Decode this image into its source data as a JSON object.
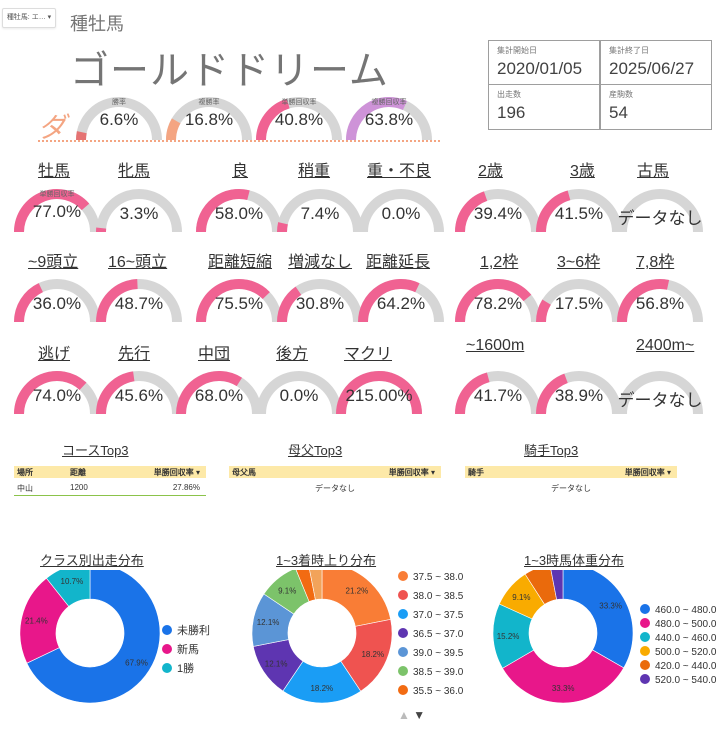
{
  "control": {
    "label": "種牡馬: エ… ▾"
  },
  "header": {
    "tag": "種牡馬",
    "horse_name": "ゴールドドリーム"
  },
  "info": [
    {
      "label": "集計開始日",
      "value": "2020/01/05"
    },
    {
      "label": "集計終了日",
      "value": "2025/06/27"
    },
    {
      "label": "出走数",
      "value": "196"
    },
    {
      "label": "産駒数",
      "value": "54"
    }
  ],
  "top_mark": "ダ",
  "top_gauges": [
    {
      "label": "勝率",
      "value": "6.6%",
      "ratio": 0.066,
      "color": "#e57373"
    },
    {
      "label": "複勝率",
      "value": "16.8%",
      "ratio": 0.168,
      "color": "#f4a582"
    },
    {
      "label": "単勝回収率",
      "value": "40.8%",
      "ratio": 0.408,
      "color": "#f06292"
    },
    {
      "label": "複勝回収率",
      "value": "63.8%",
      "ratio": 0.638,
      "color": "#ce93d8"
    }
  ],
  "gauge_sublabel": "単勝回収率",
  "sections": {
    "sex": [
      {
        "label": "牡馬",
        "value": "77.0%",
        "ratio": 0.77
      },
      {
        "label": "牝馬",
        "value": "3.3%",
        "ratio": 0.033
      }
    ],
    "going": [
      {
        "label": "良",
        "value": "58.0%",
        "ratio": 0.58
      },
      {
        "label": "稍重",
        "value": "7.4%",
        "ratio": 0.074
      },
      {
        "label": "重・不良",
        "value": "0.0%",
        "ratio": 0
      }
    ],
    "age": [
      {
        "label": "2歳",
        "value": "39.4%",
        "ratio": 0.394
      },
      {
        "label": "3歳",
        "value": "41.5%",
        "ratio": 0.415
      },
      {
        "label": "古馬",
        "value": "データなし",
        "ratio": 0
      }
    ],
    "field": [
      {
        "label": "~9頭立",
        "value": "36.0%",
        "ratio": 0.36
      },
      {
        "label": "16~頭立",
        "value": "48.7%",
        "ratio": 0.487
      }
    ],
    "dist_change": [
      {
        "label": "距離短縮",
        "value": "75.5%",
        "ratio": 0.755
      },
      {
        "label": "増減なし",
        "value": "30.8%",
        "ratio": 0.308
      },
      {
        "label": "距離延長",
        "value": "64.2%",
        "ratio": 0.642
      }
    ],
    "gate": [
      {
        "label": "1,2枠",
        "value": "78.2%",
        "ratio": 0.782
      },
      {
        "label": "3~6枠",
        "value": "17.5%",
        "ratio": 0.175
      },
      {
        "label": "7,8枠",
        "value": "56.8%",
        "ratio": 0.568
      }
    ],
    "style": [
      {
        "label": "逃げ",
        "value": "74.0%",
        "ratio": 0.74
      },
      {
        "label": "先行",
        "value": "45.6%",
        "ratio": 0.456
      },
      {
        "label": "中団",
        "value": "68.0%",
        "ratio": 0.68
      },
      {
        "label": "後方",
        "value": "0.0%",
        "ratio": 0
      },
      {
        "label": "マクリ",
        "value": "215.00%",
        "ratio": 1.0
      }
    ],
    "distance": [
      {
        "label": "~1600m",
        "value": "41.7%",
        "ratio": 0.417
      },
      {
        "label": "",
        "value": "38.9%",
        "ratio": 0.389
      },
      {
        "label": "2400m~",
        "value": "データなし",
        "ratio": 0
      }
    ]
  },
  "tables": {
    "course": {
      "title": "コースTop3",
      "headers": [
        "場所",
        "距離",
        "単勝回収率 ▾"
      ],
      "rows": [
        [
          "中山",
          "1200",
          "27.86%"
        ]
      ]
    },
    "damsire": {
      "title": "母父Top3",
      "headers": [
        "母父馬",
        "単勝回収率 ▾"
      ],
      "empty": "データなし"
    },
    "jockey": {
      "title": "騎手Top3",
      "headers": [
        "騎手",
        "単勝回収率 ▾"
      ],
      "empty": "データなし"
    }
  },
  "pagination": {
    "up": "▲",
    "down": "▼"
  },
  "chart_data": [
    {
      "type": "pie",
      "title": "クラス別出走分布",
      "donut": true,
      "labels": [
        "未勝利",
        "新馬",
        "1勝"
      ],
      "values": [
        67.9,
        21.4,
        10.7
      ],
      "colors": [
        "#1a73e8",
        "#e8178a",
        "#12b5cb"
      ]
    },
    {
      "type": "pie",
      "title": "1~3着時上り分布",
      "donut": true,
      "labels": [
        "37.5 ~ 38.0",
        "38.0 ~ 38.5",
        "37.0 ~ 37.5",
        "36.5 ~ 37.0",
        "39.0 ~ 39.5",
        "38.5 ~ 39.0",
        "35.5 ~ 36.0",
        ""
      ],
      "values": [
        21.2,
        18.2,
        18.2,
        12.1,
        12.1,
        9.1,
        3.0,
        3.0
      ],
      "colors": [
        "#f97d36",
        "#ef5350",
        "#1a9df5",
        "#5e35b1",
        "#5b95d6",
        "#7cc36a",
        "#f26b12",
        "#f2a35a"
      ]
    },
    {
      "type": "pie",
      "title": "1~3時馬体重分布",
      "donut": true,
      "labels": [
        "460.0 ~ 480.0",
        "480.0 ~ 500.0",
        "440.0 ~ 460.0",
        "500.0 ~ 520.0",
        "420.0 ~ 440.0",
        "520.0 ~ 540.0"
      ],
      "values": [
        33.3,
        33.3,
        15.2,
        9.1,
        6.1,
        3.0
      ],
      "colors": [
        "#1a73e8",
        "#e8178a",
        "#12b5cb",
        "#f9ab00",
        "#ea6a0c",
        "#5e35b1"
      ]
    }
  ]
}
